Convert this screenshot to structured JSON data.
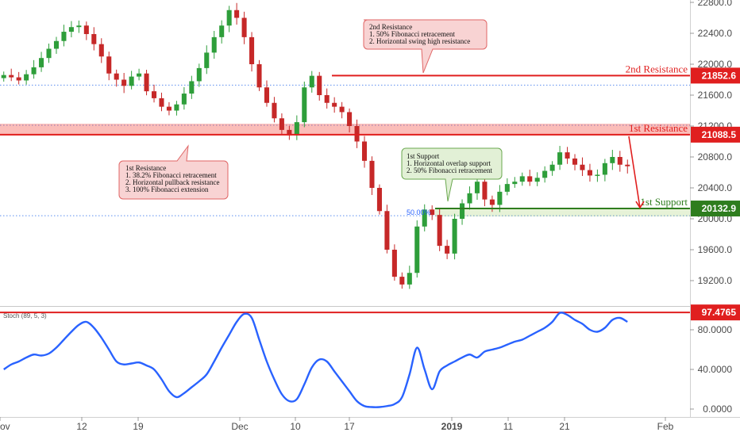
{
  "chart_data": {
    "type": "candlestick",
    "main": {
      "y_ticks": [
        "22800.0",
        "22400.0",
        "22000.0",
        "21600.0",
        "21200.0",
        "20800.0",
        "20400.0",
        "20000.0",
        "19600.0",
        "19200.0"
      ],
      "ylim": [
        18950,
        22900
      ],
      "dotted_levels": [
        21730,
        21210,
        20040
      ],
      "levels": [
        {
          "name": "2nd Resistance",
          "value": "21852.6",
          "price": 21852.6,
          "color": "#e01f1f"
        },
        {
          "name": "1st Resistance",
          "value": "21088.5",
          "price": 21088.5,
          "color": "#e01f1f"
        },
        {
          "name": "1st Support",
          "value": "20132.9",
          "price": 20132.9,
          "color": "#2e7d1e"
        }
      ],
      "fib_label": "50.00%",
      "closes": [
        21860,
        21830,
        21790,
        21870,
        21960,
        22080,
        22200,
        22300,
        22420,
        22480,
        22500,
        22390,
        22260,
        22100,
        21880,
        21800,
        21720,
        21840,
        21880,
        21650,
        21560,
        21450,
        21400,
        21480,
        21620,
        21780,
        21950,
        22150,
        22350,
        22500,
        22700,
        22600,
        22350,
        22000,
        21700,
        21500,
        21300,
        21150,
        21080,
        21250,
        21700,
        21850,
        21600,
        21500,
        21450,
        21380,
        21200,
        21000,
        20750,
        20400,
        20100,
        19600,
        19250,
        19150,
        19300,
        19900,
        20120,
        20050,
        19650,
        19550,
        20000,
        20200,
        20330,
        20480,
        20250,
        20180,
        20350,
        20450,
        20480,
        20550,
        20480,
        20530,
        20620,
        20700,
        20860,
        20780,
        20700,
        20630,
        20560,
        20570,
        20720,
        20800,
        20700,
        20680
      ],
      "annotations": {
        "r2": [
          "2nd Resistance",
          "1. 50% Fibonacci retracement",
          "2. Horizontal swing high resistance"
        ],
        "r1": [
          "1st Resistance",
          "1. 38.2% Fibonacci retracement",
          "2. Horizontal pullback resistance",
          "3. 100% Fibonacci extension"
        ],
        "s1": [
          "1st Support",
          "1. Horizontal overlap support",
          "2. 50% Fibonacci retracement"
        ]
      }
    },
    "stoch": {
      "label": "Stoch (89, 5, 3)",
      "y_ticks": [
        "80.0000",
        "40.0000",
        "0.0000"
      ],
      "ylim": [
        0,
        100
      ],
      "level": {
        "value": "97.4765",
        "price": 97.4765,
        "color": "#e01f1f"
      },
      "values": [
        40,
        45,
        48,
        52,
        55,
        54,
        56,
        62,
        70,
        78,
        85,
        88,
        82,
        72,
        60,
        48,
        45,
        46,
        47,
        44,
        40,
        30,
        18,
        12,
        16,
        22,
        28,
        35,
        48,
        62,
        75,
        88,
        96,
        92,
        70,
        48,
        30,
        15,
        8,
        10,
        25,
        42,
        50,
        48,
        38,
        28,
        18,
        8,
        3,
        2,
        2,
        3,
        5,
        12,
        35,
        62,
        40,
        20,
        38,
        44,
        48,
        52,
        55,
        52,
        58,
        60,
        62,
        65,
        68,
        70,
        74,
        78,
        82,
        88,
        97,
        95,
        90,
        86,
        80,
        78,
        82,
        90,
        92,
        88
      ]
    },
    "x_ticks": [
      "ov",
      "12",
      "19",
      "Dec",
      "10",
      "17",
      "2019",
      "11",
      "21",
      "Feb"
    ],
    "series_color": "#2962ff",
    "up_color": "#2e9e3a",
    "down_color": "#c62828",
    "grid": false
  }
}
